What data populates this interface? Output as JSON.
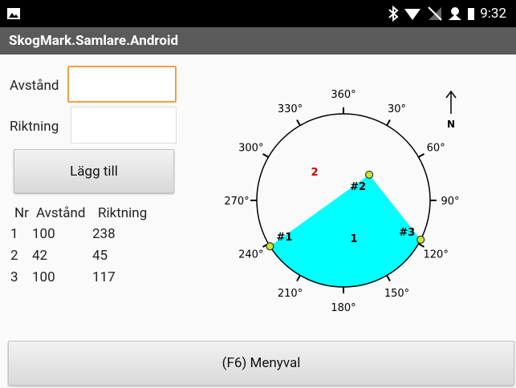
{
  "status_bar": {
    "time": "9:32"
  },
  "app_title": "SkogMark.Samlare.Android",
  "form": {
    "distance_label": "Avstånd",
    "direction_label": "Riktning",
    "add_button": "Lägg till"
  },
  "table": {
    "header": [
      "Nr",
      "Avstånd",
      "Riktning"
    ],
    "rows": [
      [
        1,
        100,
        238
      ],
      [
        2,
        42,
        45
      ],
      [
        3,
        100,
        117
      ]
    ]
  },
  "compass": {
    "degree_labels": [
      "360°",
      "30°",
      "60°",
      "90°",
      "120°",
      "150°",
      "180°",
      "210°",
      "240°",
      "270°",
      "300°",
      "330°"
    ],
    "north_label": "N",
    "point_labels": [
      "#1",
      "#2",
      "#3"
    ],
    "area_labels": [
      "1",
      "2"
    ]
  },
  "menu_button": "(F6) Menyval"
}
